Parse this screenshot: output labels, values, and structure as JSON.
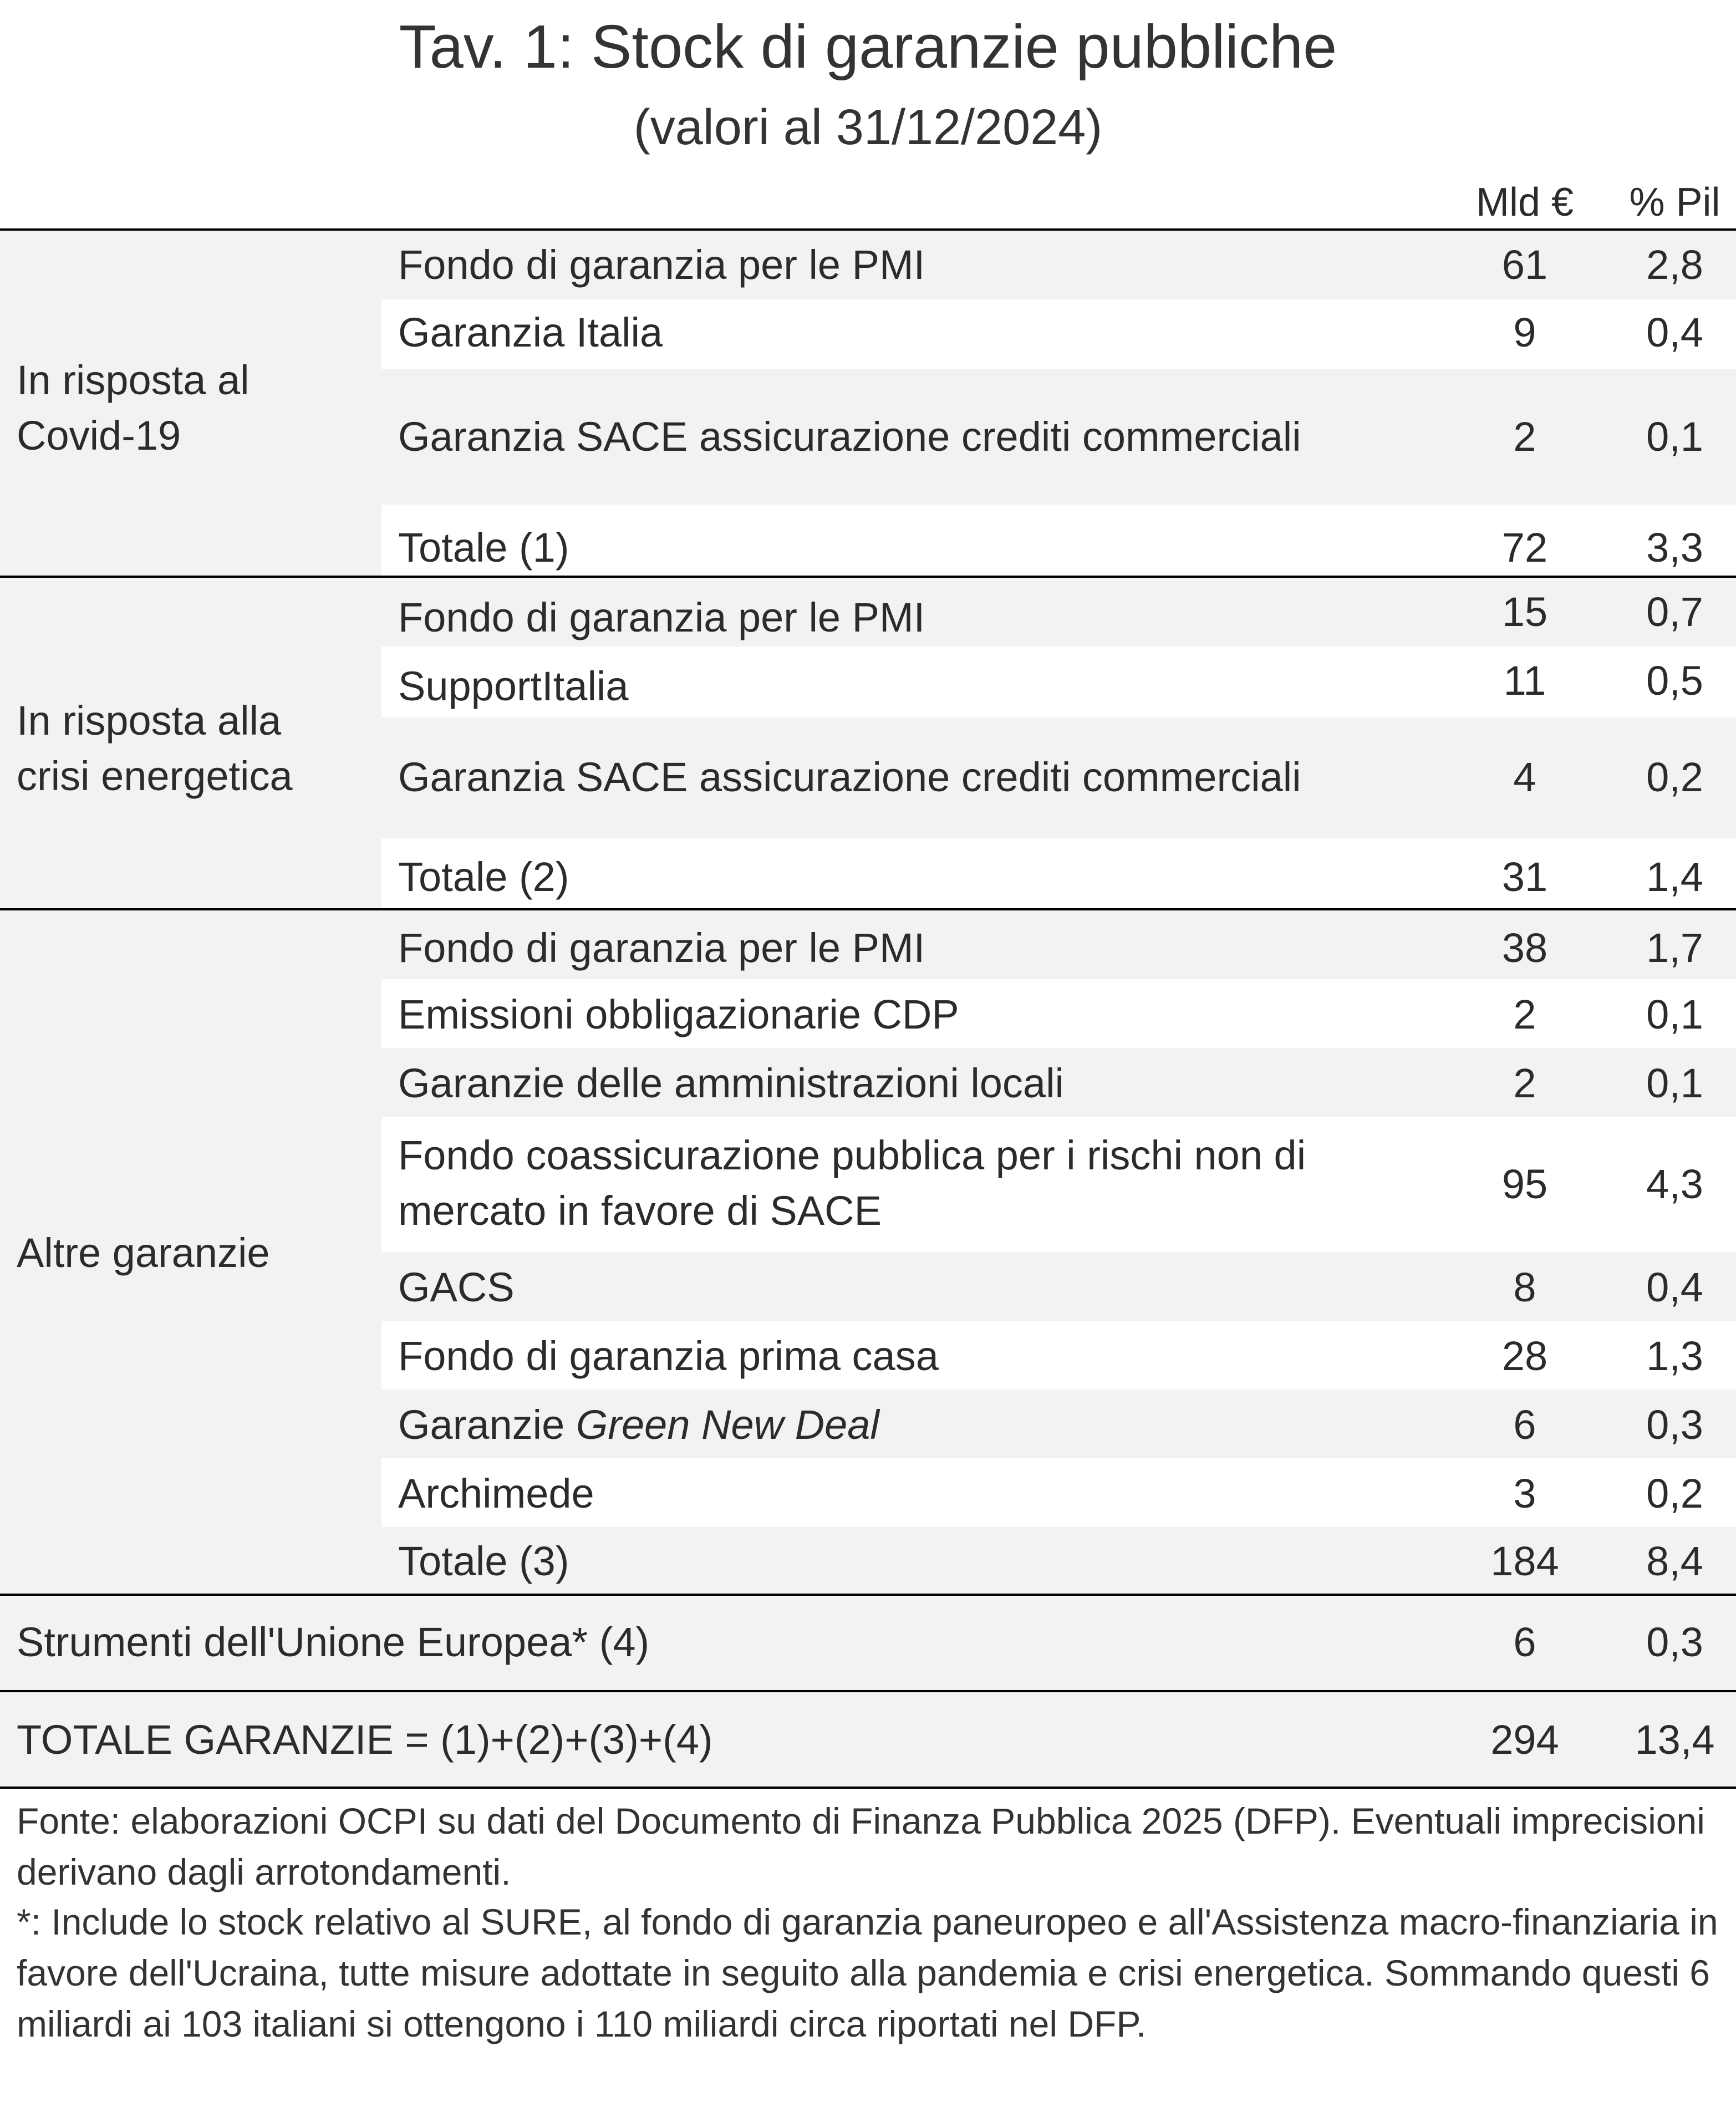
{
  "title": "Tav. 1: Stock di garanzie pubbliche",
  "subtitle": "(valori al 31/12/2024)",
  "columns": {
    "mld": "Mld €",
    "pil": "% Pil"
  },
  "groups": [
    {
      "label": "In risposta al Covid-19",
      "rows": [
        {
          "label": "Fondo di garanzia per le PMI",
          "mld": "61",
          "pil": "2,8"
        },
        {
          "label": "Garanzia Italia",
          "mld": "9",
          "pil": "0,4"
        },
        {
          "label": "Garanzia SACE assicurazione crediti commerciali",
          "mld": "2",
          "pil": "0,1"
        }
      ],
      "total": {
        "label": "Totale (1)",
        "mld": "72",
        "pil": "3,3"
      }
    },
    {
      "label": "In risposta alla crisi energetica",
      "rows": [
        {
          "label": "Fondo di garanzia per le PMI",
          "mld": "15",
          "pil": "0,7"
        },
        {
          "label": "SupportItalia",
          "mld": "11",
          "pil": "0,5"
        },
        {
          "label": "Garanzia SACE assicurazione crediti commerciali",
          "mld": "4",
          "pil": "0,2"
        }
      ],
      "total": {
        "label": "Totale (2)",
        "mld": "31",
        "pil": "1,4"
      }
    },
    {
      "label": "Altre garanzie",
      "rows": [
        {
          "label": "Fondo di garanzia per le PMI",
          "mld": "38",
          "pil": "1,7"
        },
        {
          "label": "Emissioni obbligazionarie CDP",
          "mld": "2",
          "pil": "0,1"
        },
        {
          "label": "Garanzie delle amministrazioni locali",
          "mld": "2",
          "pil": "0,1"
        },
        {
          "label": "Fondo coassicurazione pubblica per i rischi non di mercato in favore di SACE",
          "mld": "95",
          "pil": "4,3"
        },
        {
          "label": "GACS",
          "mld": "8",
          "pil": "0,4"
        },
        {
          "label": "Fondo di garanzia prima casa",
          "mld": "28",
          "pil": "1,3"
        },
        {
          "label_prefix": "Garanzie ",
          "label_italic": "Green New Deal",
          "mld": "6",
          "pil": "0,3"
        },
        {
          "label": "Archimede",
          "mld": "3",
          "pil": "0,2"
        }
      ],
      "total": {
        "label": "Totale (3)",
        "mld": "184",
        "pil": "8,4"
      }
    }
  ],
  "eu": {
    "label": "Strumenti dell'Unione Europea* (4)",
    "mld": "6",
    "pil": "0,3"
  },
  "grand_total": {
    "label": "TOTALE GARANZIE = (1)+(2)+(3)+(4)",
    "mld": "294",
    "pil": "13,4"
  },
  "footnotes": {
    "source": "Fonte: elaborazioni OCPI su dati del Documento di Finanza Pubblica 2025 (DFP). Eventuali imprecisioni derivano dagli arrotondamenti.",
    "note": "*: Include lo stock relativo al SURE, al fondo di garanzia paneuropeo e all'Assistenza macro-finanziaria in favore dell'Ucraina, tutte misure adottate in seguito alla pandemia e crisi energetica. Sommando questi 6 miliardi ai 103 italiani si ottengono i 110 miliardi circa riportati nel DFP."
  }
}
